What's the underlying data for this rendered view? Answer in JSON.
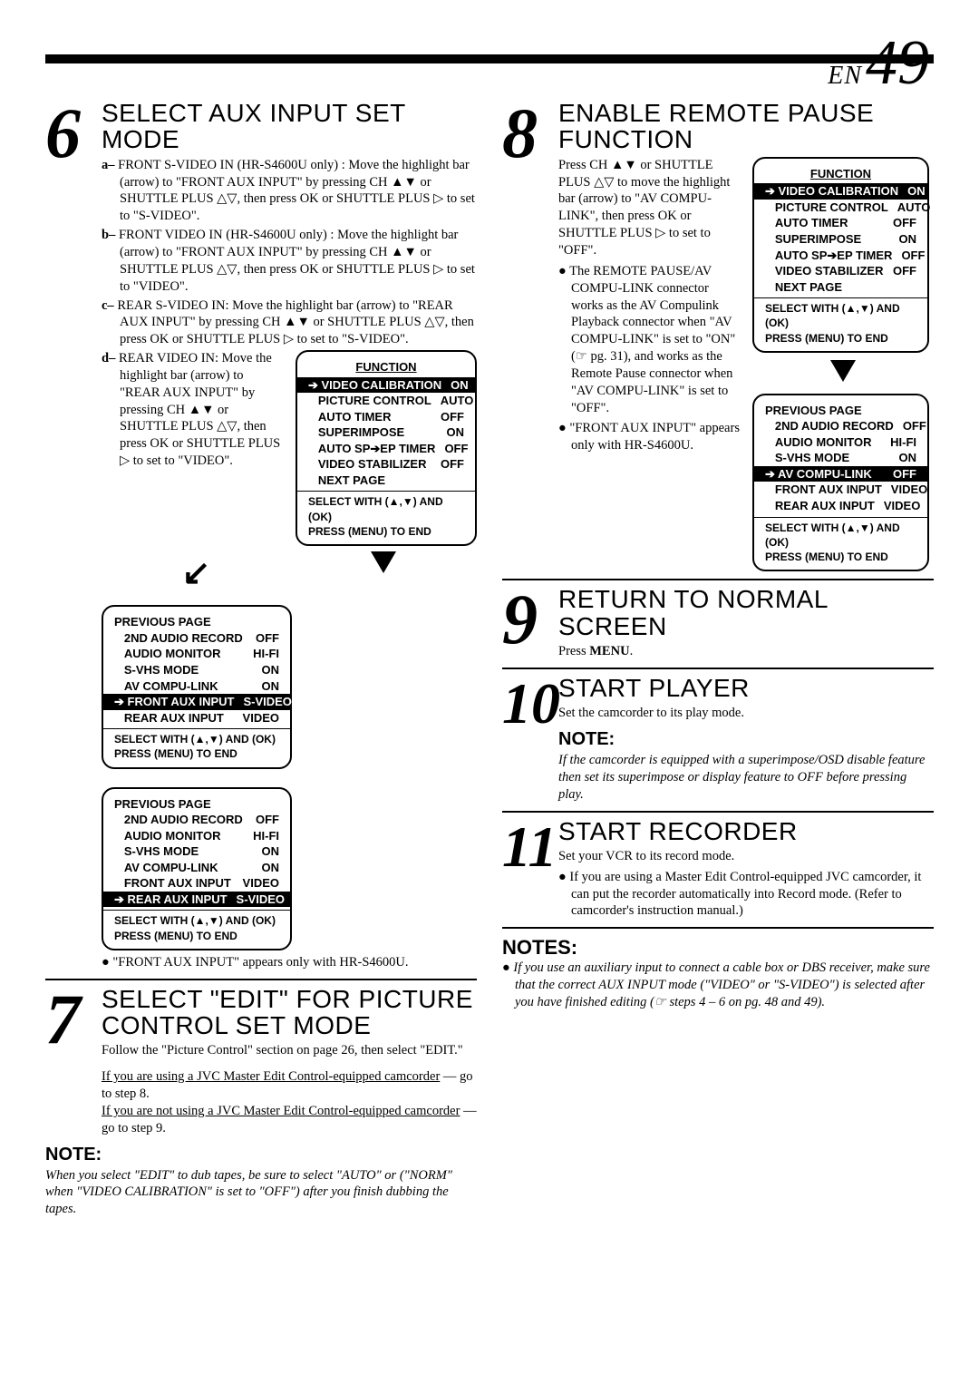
{
  "page": {
    "prefix": "EN",
    "number": "49"
  },
  "step6": {
    "num": "6",
    "title": "SELECT AUX INPUT SET MODE",
    "a": "FRONT S-VIDEO IN (HR-S4600U only) : Move the highlight bar (arrow) to \"FRONT AUX INPUT\" by pressing CH ▲▼ or SHUTTLE PLUS △▽, then press OK or SHUTTLE PLUS ▷ to set to \"S-VIDEO\".",
    "b": "FRONT VIDEO IN (HR-S4600U only) : Move the highlight bar (arrow) to \"FRONT AUX INPUT\" by pressing CH ▲▼ or SHUTTLE PLUS △▽, then press OK or SHUTTLE PLUS ▷ to set to \"VIDEO\".",
    "c": "REAR S-VIDEO IN: Move the highlight bar (arrow) to \"REAR AUX INPUT\" by pressing CH ▲▼ or SHUTTLE PLUS △▽, then press OK or SHUTTLE PLUS ▷ to set to \"S-VIDEO\".",
    "d_pre": "REAR VIDEO IN: Move the highlight bar (arrow) to \"REAR AUX INPUT\" by pressing CH ▲▼ or SHUTTLE PLUS △▽, then press OK or SHUTTLE PLUS ▷ to set to \"VIDEO\".",
    "foot": "\"FRONT AUX INPUT\" appears only with HR-S4600U."
  },
  "osd1": {
    "title": "FUNCTION",
    "rows": [
      {
        "l": "VIDEO CALIBRATION",
        "r": "ON",
        "hi": true,
        "a": "➔"
      },
      {
        "l": "PICTURE CONTROL",
        "r": "AUTO"
      },
      {
        "l": "AUTO TIMER",
        "r": "OFF"
      },
      {
        "l": "SUPERIMPOSE",
        "r": "ON"
      },
      {
        "l": "AUTO SP➔EP TIMER",
        "r": "OFF"
      },
      {
        "l": "VIDEO STABILIZER",
        "r": "OFF"
      },
      {
        "l": "NEXT PAGE",
        "r": ""
      }
    ],
    "foot1": "SELECT WITH (▲,▼) AND (OK)",
    "foot2": "PRESS (MENU) TO END"
  },
  "osd2": {
    "head": "PREVIOUS PAGE",
    "rows": [
      {
        "l": "2ND AUDIO RECORD",
        "r": "OFF"
      },
      {
        "l": "AUDIO MONITOR",
        "r": "HI-FI"
      },
      {
        "l": "S-VHS MODE",
        "r": "ON"
      },
      {
        "l": "AV COMPU-LINK",
        "r": "ON"
      },
      {
        "l": "FRONT AUX INPUT",
        "r": "S-VIDEO",
        "hi": true,
        "a": "➔"
      },
      {
        "l": "REAR AUX INPUT",
        "r": "VIDEO"
      }
    ],
    "foot1": "SELECT WITH (▲,▼) AND (OK)",
    "foot2": "PRESS (MENU) TO END"
  },
  "osd3": {
    "head": "PREVIOUS PAGE",
    "rows": [
      {
        "l": "2ND AUDIO RECORD",
        "r": "OFF"
      },
      {
        "l": "AUDIO MONITOR",
        "r": "HI-FI"
      },
      {
        "l": "S-VHS MODE",
        "r": "ON"
      },
      {
        "l": "AV COMPU-LINK",
        "r": "ON"
      },
      {
        "l": "FRONT AUX INPUT",
        "r": "VIDEO"
      },
      {
        "l": "REAR AUX INPUT",
        "r": "S-VIDEO",
        "hi": true,
        "a": "➔"
      }
    ],
    "foot1": "SELECT WITH (▲,▼) AND (OK)",
    "foot2": "PRESS (MENU) TO END"
  },
  "step7": {
    "num": "7",
    "title": "SELECT \"EDIT\" FOR PICTURE CONTROL SET MODE",
    "body": "Follow the \"Picture Control\" section on page 26, then select \"EDIT.\"",
    "link1": "If you are using a JVC Master Edit Control-equipped camcorder",
    "link1b": " — go to step 8.",
    "link2": "If you are not using a JVC Master Edit Control-equipped camcorder",
    "link2b": " — go to step 9.",
    "note_head": "NOTE:",
    "note": "When you select \"EDIT\" to dub tapes, be sure to select \"AUTO\" or (\"NORM\" when \"VIDEO CALIBRATION\" is set to \"OFF\") after you finish dubbing the tapes."
  },
  "step8": {
    "num": "8",
    "title": "ENABLE REMOTE PAUSE FUNCTION",
    "body": "Press CH ▲▼ or SHUTTLE PLUS △▽ to move the highlight bar (arrow) to \"AV COMPU-LINK\", then press OK or SHUTTLE PLUS ▷ to set to \"OFF\".",
    "b1": "The REMOTE PAUSE/AV COMPU-LINK connector works as the AV Compulink Playback connector when \"AV COMPU-LINK\" is set to \"ON\" (☞ pg. 31), and works as the Remote Pause connector when \"AV COMPU-LINK\" is set to \"OFF\".",
    "b2": "\"FRONT AUX INPUT\" appears only with HR-S4600U."
  },
  "osd8a": {
    "title": "FUNCTION",
    "rows": [
      {
        "l": "VIDEO CALIBRATION",
        "r": "ON",
        "hi": true,
        "a": "➔"
      },
      {
        "l": "PICTURE CONTROL",
        "r": "AUTO"
      },
      {
        "l": "AUTO TIMER",
        "r": "OFF"
      },
      {
        "l": "SUPERIMPOSE",
        "r": "ON"
      },
      {
        "l": "AUTO SP➔EP TIMER",
        "r": "OFF"
      },
      {
        "l": "VIDEO STABILIZER",
        "r": "OFF"
      },
      {
        "l": "NEXT PAGE",
        "r": ""
      }
    ],
    "foot1": "SELECT WITH (▲,▼) AND (OK)",
    "foot2": "PRESS (MENU) TO END"
  },
  "osd8b": {
    "head": "PREVIOUS PAGE",
    "rows": [
      {
        "l": "2ND AUDIO RECORD",
        "r": "OFF"
      },
      {
        "l": "AUDIO MONITOR",
        "r": "HI-FI"
      },
      {
        "l": "S-VHS MODE",
        "r": "ON"
      },
      {
        "l": "AV COMPU-LINK",
        "r": "OFF",
        "hi": true,
        "a": "➔"
      },
      {
        "l": "FRONT AUX INPUT",
        "r": "VIDEO"
      },
      {
        "l": "REAR AUX INPUT",
        "r": "VIDEO"
      }
    ],
    "foot1": "SELECT WITH (▲,▼) AND (OK)",
    "foot2": "PRESS (MENU) TO END"
  },
  "step9": {
    "num": "9",
    "title": "RETURN TO NORMAL SCREEN",
    "body": "Press MENU."
  },
  "step10": {
    "num": "10",
    "title": "START PLAYER",
    "body": "Set the camcorder to its play mode.",
    "note_head": "NOTE:",
    "note": "If the camcorder is equipped with a superimpose/OSD disable feature then set its superimpose or display feature to OFF before pressing play."
  },
  "step11": {
    "num": "11",
    "title": "START RECORDER",
    "body": "Set your VCR to its record mode.",
    "b1": "If you are using a Master Edit Control-equipped JVC camcorder, it can put the recorder automatically into Record mode. (Refer to camcorder's instruction manual.)"
  },
  "notes": {
    "head": "NOTES:",
    "n1": "If you use an auxiliary input to connect a cable box or DBS receiver, make sure that the correct AUX INPUT mode (\"VIDEO\" or \"S-VIDEO\") is selected after you have finished editing (☞ steps 4 – 6 on pg. 48 and 49)."
  }
}
